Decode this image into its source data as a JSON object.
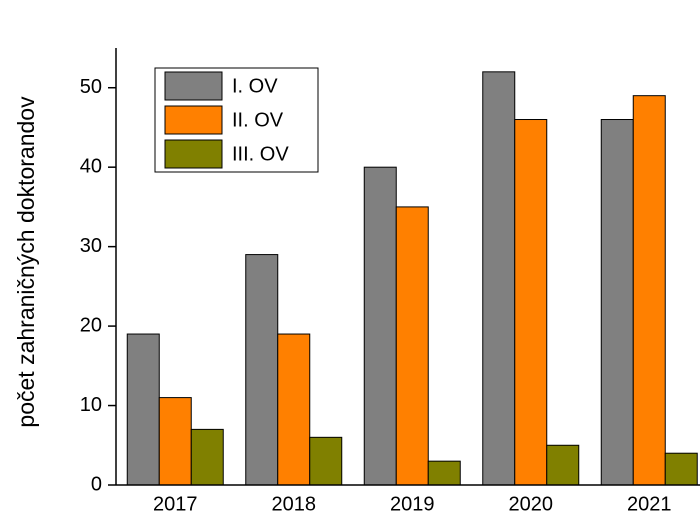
{
  "chart_data": {
    "type": "bar",
    "y_label": "počet zahraničných doktorandov",
    "categories": [
      "2017",
      "2018",
      "2019",
      "2020",
      "2021"
    ],
    "series": [
      {
        "name": "I. OV",
        "color": "#808080",
        "values": [
          19,
          29,
          40,
          52,
          46
        ]
      },
      {
        "name": "II. OV",
        "color": "#ff8000",
        "values": [
          11,
          19,
          35,
          46,
          49
        ]
      },
      {
        "name": "III. OV",
        "color": "#808000",
        "values": [
          7,
          6,
          3,
          5,
          4
        ]
      }
    ],
    "ylim": [
      0,
      55
    ],
    "yticks": [
      0,
      10,
      20,
      30,
      40,
      50
    ],
    "legend": "upper left"
  }
}
